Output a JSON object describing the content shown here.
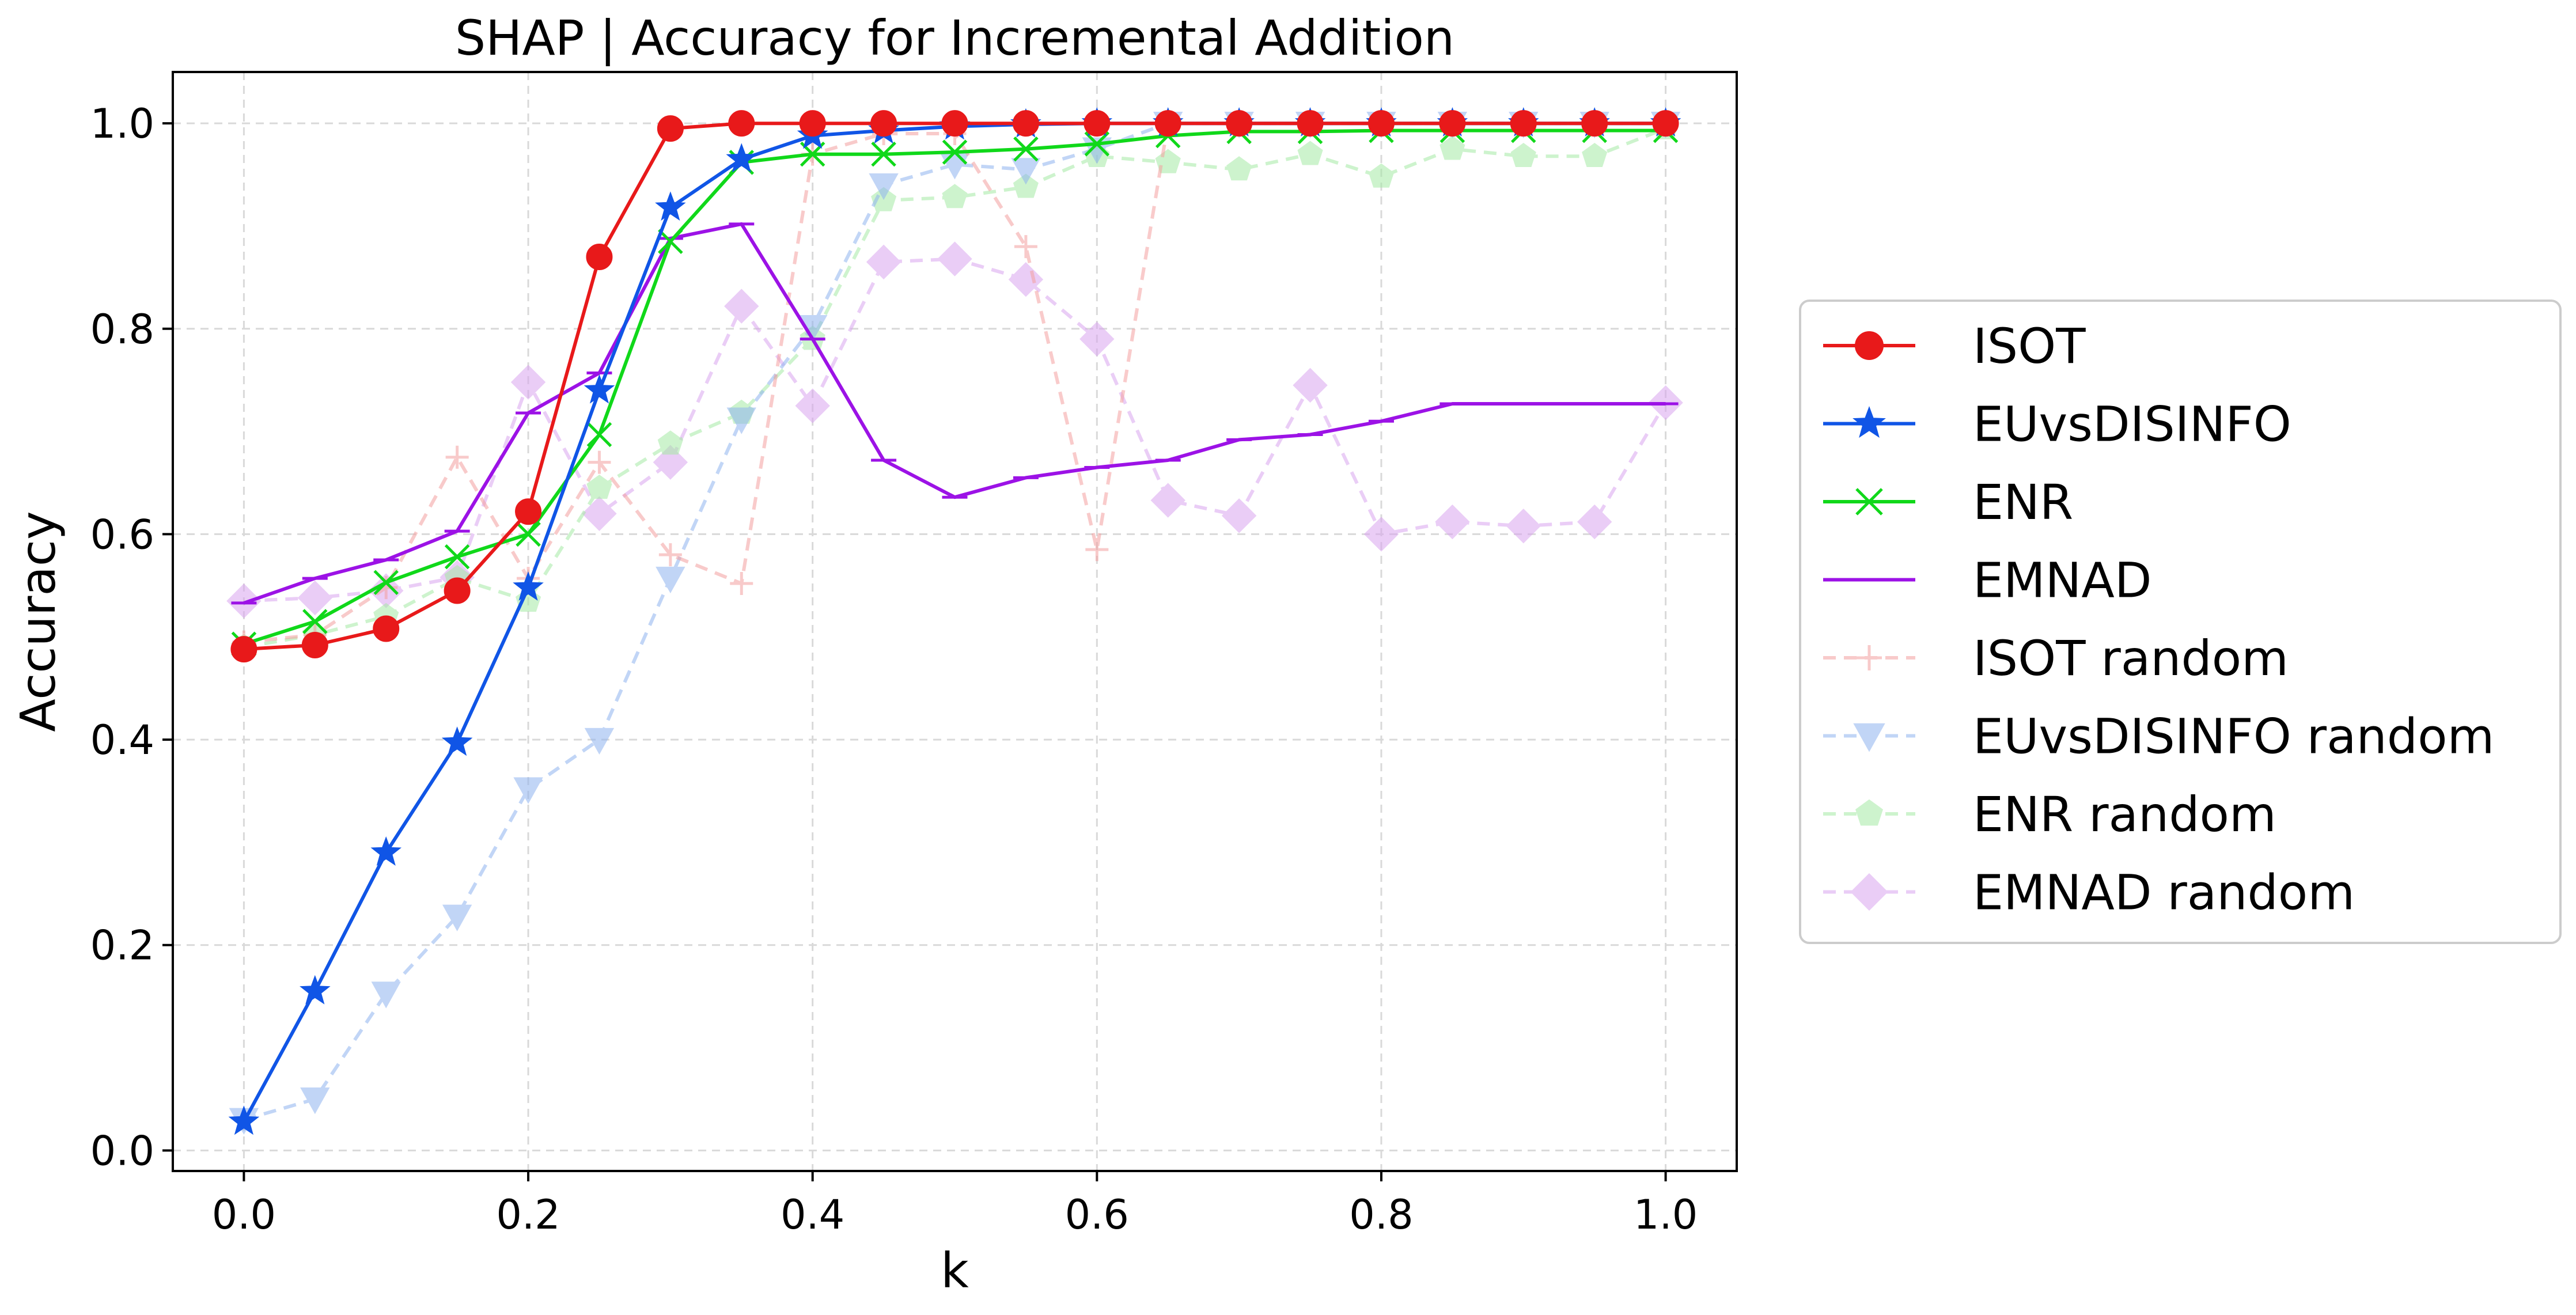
{
  "chart_data": {
    "type": "line",
    "title": "SHAP | Accuracy for Incremental Addition",
    "xlabel": "k",
    "ylabel": "Accuracy",
    "xlim": [
      -0.05,
      1.05
    ],
    "ylim": [
      -0.02,
      1.05
    ],
    "xticks": [
      "0.0",
      "0.2",
      "0.4",
      "0.6",
      "0.8",
      "1.0"
    ],
    "xtick_values": [
      0.0,
      0.2,
      0.4,
      0.6,
      0.8,
      1.0
    ],
    "yticks": [
      "0.0",
      "0.2",
      "0.4",
      "0.6",
      "0.8",
      "1.0"
    ],
    "ytick_values": [
      0.0,
      0.2,
      0.4,
      0.6,
      0.8,
      1.0
    ],
    "grid": true,
    "legend_position": "right-outside",
    "x": [
      0.0,
      0.05,
      0.1,
      0.15,
      0.2,
      0.25,
      0.3,
      0.35,
      0.4,
      0.45,
      0.5,
      0.55,
      0.6,
      0.65,
      0.7,
      0.75,
      0.8,
      0.85,
      0.9,
      0.95,
      1.0
    ],
    "series": [
      {
        "name": "ISOT",
        "color": "#e8191a",
        "marker": "circle",
        "dashed": false,
        "opacity": 1,
        "values": [
          0.488,
          0.492,
          0.508,
          0.545,
          0.622,
          0.87,
          0.995,
          1.0,
          1.0,
          1.0,
          1.0,
          1.0,
          1.0,
          1.0,
          1.0,
          1.0,
          1.0,
          1.0,
          1.0,
          1.0,
          1.0
        ]
      },
      {
        "name": "EUvsDISINFO",
        "color": "#1055e6",
        "marker": "star",
        "dashed": false,
        "opacity": 1,
        "values": [
          0.028,
          0.155,
          0.29,
          0.397,
          0.548,
          0.74,
          0.918,
          0.965,
          0.988,
          0.993,
          0.997,
          0.999,
          1.0,
          1.0,
          1.0,
          1.0,
          1.0,
          1.0,
          1.0,
          1.0,
          1.0
        ]
      },
      {
        "name": "ENR",
        "color": "#10d81a",
        "marker": "x",
        "dashed": false,
        "opacity": 1,
        "values": [
          0.493,
          0.515,
          0.553,
          0.578,
          0.6,
          0.697,
          0.885,
          0.962,
          0.97,
          0.97,
          0.972,
          0.975,
          0.98,
          0.988,
          0.992,
          0.992,
          0.993,
          0.993,
          0.993,
          0.993,
          0.993
        ]
      },
      {
        "name": "EMNAD",
        "color": "#9c12e6",
        "marker": "hline",
        "dashed": false,
        "opacity": 1,
        "values": [
          0.533,
          0.557,
          0.575,
          0.603,
          0.718,
          0.757,
          0.888,
          0.902,
          0.79,
          0.672,
          0.636,
          0.655,
          0.665,
          0.672,
          0.692,
          0.697,
          0.71,
          0.727,
          0.727,
          0.727,
          0.727
        ]
      },
      {
        "name": "ISOT random",
        "color": "#f4a0a0",
        "marker": "plus",
        "dashed": true,
        "opacity": 0.55,
        "values": [
          0.495,
          0.502,
          0.548,
          0.675,
          0.557,
          0.67,
          0.58,
          0.552,
          0.97,
          0.99,
          0.99,
          0.88,
          0.585,
          1.0,
          1.0,
          1.0,
          1.0,
          1.0,
          1.0,
          1.0,
          1.0
        ]
      },
      {
        "name": "EUvsDISINFO random",
        "color": "#90b4ef",
        "marker": "triangle-down",
        "dashed": true,
        "opacity": 0.55,
        "values": [
          0.03,
          0.05,
          0.153,
          0.228,
          0.352,
          0.4,
          0.557,
          0.712,
          0.802,
          0.94,
          0.96,
          0.955,
          0.975,
          1.0,
          1.0,
          1.0,
          1.0,
          1.0,
          1.0,
          1.0,
          1.0
        ]
      },
      {
        "name": "ENR random",
        "color": "#a6eaa6",
        "marker": "pentagon",
        "dashed": true,
        "opacity": 0.55,
        "values": [
          0.49,
          0.502,
          0.52,
          0.557,
          0.535,
          0.645,
          0.688,
          0.718,
          0.79,
          0.925,
          0.928,
          0.938,
          0.968,
          0.962,
          0.955,
          0.97,
          0.948,
          0.975,
          0.968,
          0.968,
          0.995
        ]
      },
      {
        "name": "EMNAD random",
        "color": "#d9a6ef",
        "marker": "diamond",
        "dashed": true,
        "opacity": 0.55,
        "values": [
          0.535,
          0.538,
          0.545,
          0.558,
          0.748,
          0.62,
          0.67,
          0.822,
          0.725,
          0.865,
          0.868,
          0.848,
          0.79,
          0.633,
          0.618,
          0.745,
          0.6,
          0.612,
          0.608,
          0.612,
          0.728
        ]
      }
    ]
  }
}
